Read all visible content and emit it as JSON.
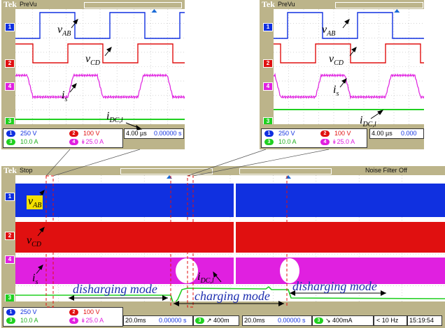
{
  "scope_top_left": {
    "brand": "Tek",
    "mode": "PreVu",
    "ch1_scale": "250 V",
    "ch2_scale": "100 V",
    "ch3_scale": "10.0 A",
    "ch4_scale": "25.0 A",
    "timebase": "4.00 µs",
    "delay": "0.00000 s"
  },
  "scope_top_right": {
    "brand": "Tek",
    "mode": "PreVu",
    "ch1_scale": "250 V",
    "ch2_scale": "100 V",
    "ch3_scale": "10.0 A",
    "ch4_scale": "25.0 A",
    "timebase": "4.00 µs",
    "delay": "0.000"
  },
  "scope_main": {
    "brand": "Tek",
    "mode": "Stop",
    "noise_filter": "Noise Filter Off",
    "ch1_scale": "250 V",
    "ch2_scale": "100 V",
    "ch3_scale": "10.0 A",
    "ch4_scale": "25.0 A",
    "timebase_a": "20.0ms",
    "delay_a": "0.00000 s",
    "trig_a": "400m",
    "timebase_b": "20.0ms",
    "delay_b": "0.00000 s",
    "trig_b": "400mA",
    "freq": "< 10 Hz",
    "clock": "15:19:54"
  },
  "channel_numbers": [
    "1",
    "2",
    "3",
    "4"
  ],
  "labels": {
    "v_ab": "v",
    "v_ab_sub": "AB",
    "v_cd": "v",
    "v_cd_sub": "CD",
    "i_s": "i",
    "i_s_sub": "s",
    "i_dc": "i",
    "i_dc_sub": "DC,l"
  },
  "modes": {
    "left": "disharging mode",
    "middle": "charging mode",
    "right": "disharging mode"
  },
  "colors": {
    "ch1": "#1030e0",
    "ch2": "#e01010",
    "ch3": "#20d020",
    "ch4": "#e020e0",
    "bezel": "#bcb48a",
    "mode_text": "#1f2fb0"
  }
}
